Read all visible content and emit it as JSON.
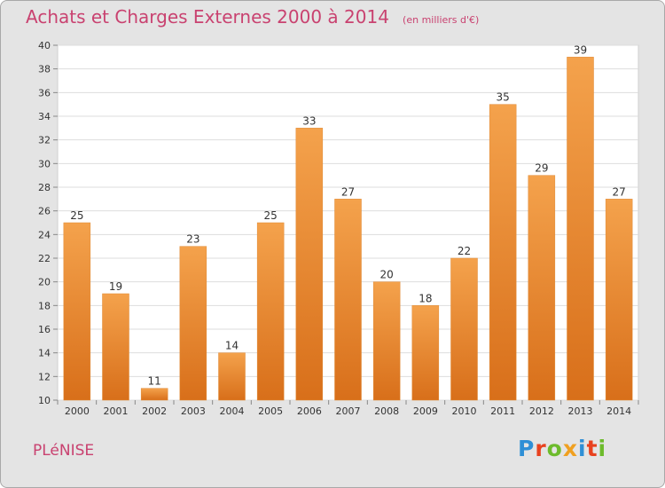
{
  "chart_data": {
    "type": "bar",
    "title": "Achats et Charges Externes 2000 à 2014",
    "subtitle": "(en milliers d'€)",
    "categories": [
      "2000",
      "2001",
      "2002",
      "2003",
      "2004",
      "2005",
      "2006",
      "2007",
      "2008",
      "2009",
      "2010",
      "2011",
      "2012",
      "2013",
      "2014"
    ],
    "values": [
      25,
      19,
      11,
      23,
      14,
      25,
      33,
      27,
      20,
      18,
      22,
      35,
      29,
      39,
      27
    ],
    "ylim": [
      10,
      40
    ],
    "yticks": [
      10,
      12,
      14,
      16,
      18,
      20,
      22,
      24,
      26,
      28,
      30,
      32,
      34,
      36,
      38,
      40
    ],
    "grid": true,
    "bar_color": "#f0943a",
    "bar_color_dark": "#d86f1a",
    "title_color": "#c94270"
  },
  "footer": {
    "town": "PLéNISE",
    "logo": "Proxiti",
    "logo_colors": [
      "#2f8fd6",
      "#e8421f",
      "#6dbb2c",
      "#f0a020",
      "#2f8fd6",
      "#e8421f",
      "#6dbb2c"
    ]
  }
}
